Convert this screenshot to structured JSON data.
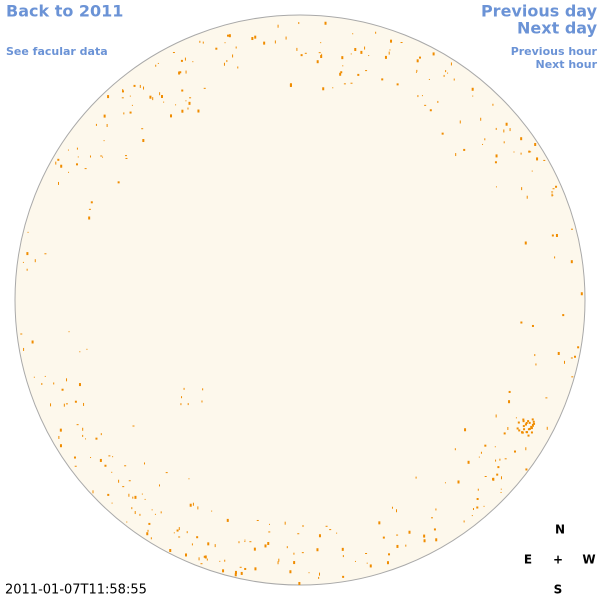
{
  "links": {
    "back": "Back to 2011",
    "facular": "See facular data",
    "previous_day": "Previous day",
    "next_day": "Next day",
    "previous_hour": "Previous hour",
    "next_hour": "Next hour"
  },
  "compass": {
    "north": "N",
    "east": "E",
    "center": "+",
    "west": "W",
    "south": "S"
  },
  "timestamp": "2011-01-07T11:58:55"
}
